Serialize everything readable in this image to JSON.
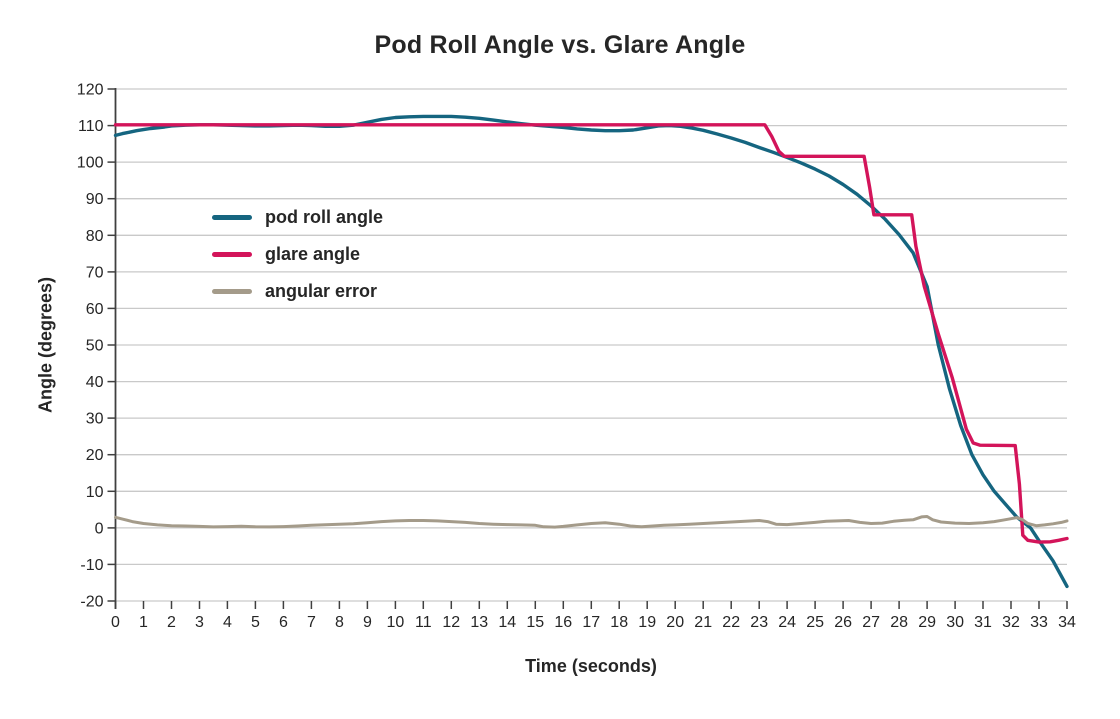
{
  "chart_data": {
    "type": "line",
    "title": "Pod Roll Angle vs. Glare Angle",
    "xlabel": "Time (seconds)",
    "ylabel": "Angle (degrees)",
    "xlim": [
      0,
      34
    ],
    "ylim": [
      -20,
      120
    ],
    "x_ticks": [
      0,
      1,
      2,
      3,
      4,
      5,
      6,
      7,
      8,
      9,
      10,
      11,
      12,
      13,
      14,
      15,
      16,
      17,
      18,
      19,
      20,
      21,
      22,
      23,
      24,
      25,
      26,
      27,
      28,
      29,
      30,
      31,
      32,
      33,
      34
    ],
    "y_ticks": [
      120,
      110,
      100,
      90,
      80,
      70,
      60,
      50,
      40,
      30,
      20,
      10,
      0,
      -10,
      -20
    ],
    "grid": "horizontal",
    "grid_color": "#c9c9c9",
    "axis_color": "#404040",
    "text_color": "#262626",
    "legend_position": "inside-top-left",
    "series": [
      {
        "name": "pod roll angle",
        "color": "#156580",
        "stroke_width": 3.4,
        "points": [
          [
            0,
            107.3
          ],
          [
            0.25,
            107.8
          ],
          [
            0.5,
            108.2
          ],
          [
            0.75,
            108.6
          ],
          [
            1,
            108.9
          ],
          [
            1.25,
            109.2
          ],
          [
            1.5,
            109.4
          ],
          [
            1.75,
            109.6
          ],
          [
            2,
            109.9
          ],
          [
            2.25,
            110.0
          ],
          [
            2.5,
            110.1
          ],
          [
            3,
            110.2
          ],
          [
            3.5,
            110.2
          ],
          [
            4,
            110.1
          ],
          [
            4.5,
            110.0
          ],
          [
            5,
            109.9
          ],
          [
            5.5,
            109.9
          ],
          [
            6,
            110.0
          ],
          [
            6.5,
            110.1
          ],
          [
            7,
            110.0
          ],
          [
            7.5,
            109.8
          ],
          [
            8,
            109.8
          ],
          [
            8.5,
            110.1
          ],
          [
            9,
            110.9
          ],
          [
            9.5,
            111.7
          ],
          [
            10,
            112.2
          ],
          [
            10.5,
            112.4
          ],
          [
            11,
            112.5
          ],
          [
            11.5,
            112.5
          ],
          [
            12,
            112.5
          ],
          [
            12.5,
            112.3
          ],
          [
            13,
            112.0
          ],
          [
            13.5,
            111.5
          ],
          [
            14,
            111.0
          ],
          [
            14.5,
            110.5
          ],
          [
            15,
            110.1
          ],
          [
            15.5,
            109.8
          ],
          [
            16,
            109.5
          ],
          [
            16.5,
            109.1
          ],
          [
            17,
            108.8
          ],
          [
            17.5,
            108.6
          ],
          [
            18,
            108.6
          ],
          [
            18.5,
            108.8
          ],
          [
            19,
            109.4
          ],
          [
            19.4,
            109.9
          ],
          [
            19.8,
            110.0
          ],
          [
            20.2,
            109.8
          ],
          [
            20.6,
            109.3
          ],
          [
            21,
            108.7
          ],
          [
            21.5,
            107.7
          ],
          [
            22,
            106.6
          ],
          [
            22.5,
            105.4
          ],
          [
            23,
            104.0
          ],
          [
            23.5,
            102.7
          ],
          [
            24,
            101.3
          ],
          [
            24.5,
            99.8
          ],
          [
            25,
            98.1
          ],
          [
            25.5,
            96.2
          ],
          [
            26,
            93.9
          ],
          [
            26.5,
            91.2
          ],
          [
            27,
            88.0
          ],
          [
            27.5,
            84.4
          ],
          [
            28,
            80.2
          ],
          [
            28.5,
            75.2
          ],
          [
            29,
            66.0
          ],
          [
            29.4,
            50.0
          ],
          [
            29.8,
            38.0
          ],
          [
            30.2,
            28.0
          ],
          [
            30.6,
            20.0
          ],
          [
            31,
            14.5
          ],
          [
            31.4,
            10.0
          ],
          [
            31.8,
            6.5
          ],
          [
            32.2,
            3.0
          ],
          [
            32.7,
            0.0
          ],
          [
            33,
            -3.5
          ],
          [
            33.5,
            -9.0
          ],
          [
            34,
            -16.0
          ]
        ]
      },
      {
        "name": "glare angle",
        "color": "#d3145a",
        "stroke_width": 3.4,
        "points": [
          [
            0,
            110.2
          ],
          [
            23.2,
            110.2
          ],
          [
            23.45,
            107.0
          ],
          [
            23.7,
            103.0
          ],
          [
            23.9,
            101.6
          ],
          [
            26.75,
            101.6
          ],
          [
            26.95,
            93.0
          ],
          [
            27.1,
            85.6
          ],
          [
            28.45,
            85.6
          ],
          [
            28.6,
            77.0
          ],
          [
            28.9,
            66.0
          ],
          [
            29.4,
            53.0
          ],
          [
            29.9,
            41.0
          ],
          [
            30.4,
            27.0
          ],
          [
            30.65,
            23.2
          ],
          [
            30.9,
            22.6
          ],
          [
            32.15,
            22.5
          ],
          [
            32.3,
            12.0
          ],
          [
            32.42,
            -2.0
          ],
          [
            32.6,
            -3.4
          ],
          [
            33,
            -3.9
          ],
          [
            33.4,
            -3.8
          ],
          [
            33.7,
            -3.4
          ],
          [
            34,
            -2.9
          ]
        ]
      },
      {
        "name": "angular error",
        "color": "#a49b8a",
        "stroke_width": 3.0,
        "points": [
          [
            0,
            2.9
          ],
          [
            0.3,
            2.3
          ],
          [
            0.6,
            1.7
          ],
          [
            1,
            1.2
          ],
          [
            1.5,
            0.8
          ],
          [
            2,
            0.6
          ],
          [
            2.5,
            0.5
          ],
          [
            3,
            0.4
          ],
          [
            3.5,
            0.25
          ],
          [
            4,
            0.35
          ],
          [
            4.5,
            0.45
          ],
          [
            5,
            0.3
          ],
          [
            5.5,
            0.25
          ],
          [
            6,
            0.35
          ],
          [
            6.5,
            0.5
          ],
          [
            7,
            0.7
          ],
          [
            7.5,
            0.85
          ],
          [
            8,
            1.0
          ],
          [
            8.5,
            1.1
          ],
          [
            9,
            1.4
          ],
          [
            9.5,
            1.7
          ],
          [
            10,
            1.9
          ],
          [
            10.5,
            2.0
          ],
          [
            11,
            2.0
          ],
          [
            11.5,
            1.9
          ],
          [
            12,
            1.7
          ],
          [
            12.5,
            1.5
          ],
          [
            13,
            1.2
          ],
          [
            13.5,
            1.0
          ],
          [
            14,
            0.9
          ],
          [
            14.5,
            0.8
          ],
          [
            15,
            0.7
          ],
          [
            15.3,
            0.3
          ],
          [
            15.7,
            0.2
          ],
          [
            16,
            0.4
          ],
          [
            16.5,
            0.8
          ],
          [
            17,
            1.2
          ],
          [
            17.5,
            1.4
          ],
          [
            18,
            1.0
          ],
          [
            18.4,
            0.5
          ],
          [
            18.8,
            0.3
          ],
          [
            19.2,
            0.5
          ],
          [
            19.6,
            0.7
          ],
          [
            20,
            0.8
          ],
          [
            20.5,
            1.0
          ],
          [
            21,
            1.2
          ],
          [
            21.5,
            1.4
          ],
          [
            22,
            1.6
          ],
          [
            22.5,
            1.8
          ],
          [
            23,
            2.0
          ],
          [
            23.3,
            1.7
          ],
          [
            23.6,
            1.0
          ],
          [
            24,
            0.9
          ],
          [
            24.5,
            1.2
          ],
          [
            25,
            1.5
          ],
          [
            25.4,
            1.8
          ],
          [
            25.8,
            1.9
          ],
          [
            26.2,
            2.0
          ],
          [
            26.6,
            1.5
          ],
          [
            27,
            1.2
          ],
          [
            27.4,
            1.3
          ],
          [
            27.8,
            1.8
          ],
          [
            28.2,
            2.1
          ],
          [
            28.5,
            2.2
          ],
          [
            28.8,
            3.0
          ],
          [
            29,
            3.1
          ],
          [
            29.2,
            2.2
          ],
          [
            29.5,
            1.6
          ],
          [
            30,
            1.3
          ],
          [
            30.5,
            1.2
          ],
          [
            31,
            1.4
          ],
          [
            31.4,
            1.7
          ],
          [
            31.7,
            2.1
          ],
          [
            32,
            2.5
          ],
          [
            32.2,
            2.8
          ],
          [
            32.4,
            2.3
          ],
          [
            32.6,
            1.2
          ],
          [
            32.9,
            0.6
          ],
          [
            33.2,
            0.8
          ],
          [
            33.5,
            1.1
          ],
          [
            33.8,
            1.5
          ],
          [
            34,
            1.9
          ]
        ]
      }
    ]
  }
}
